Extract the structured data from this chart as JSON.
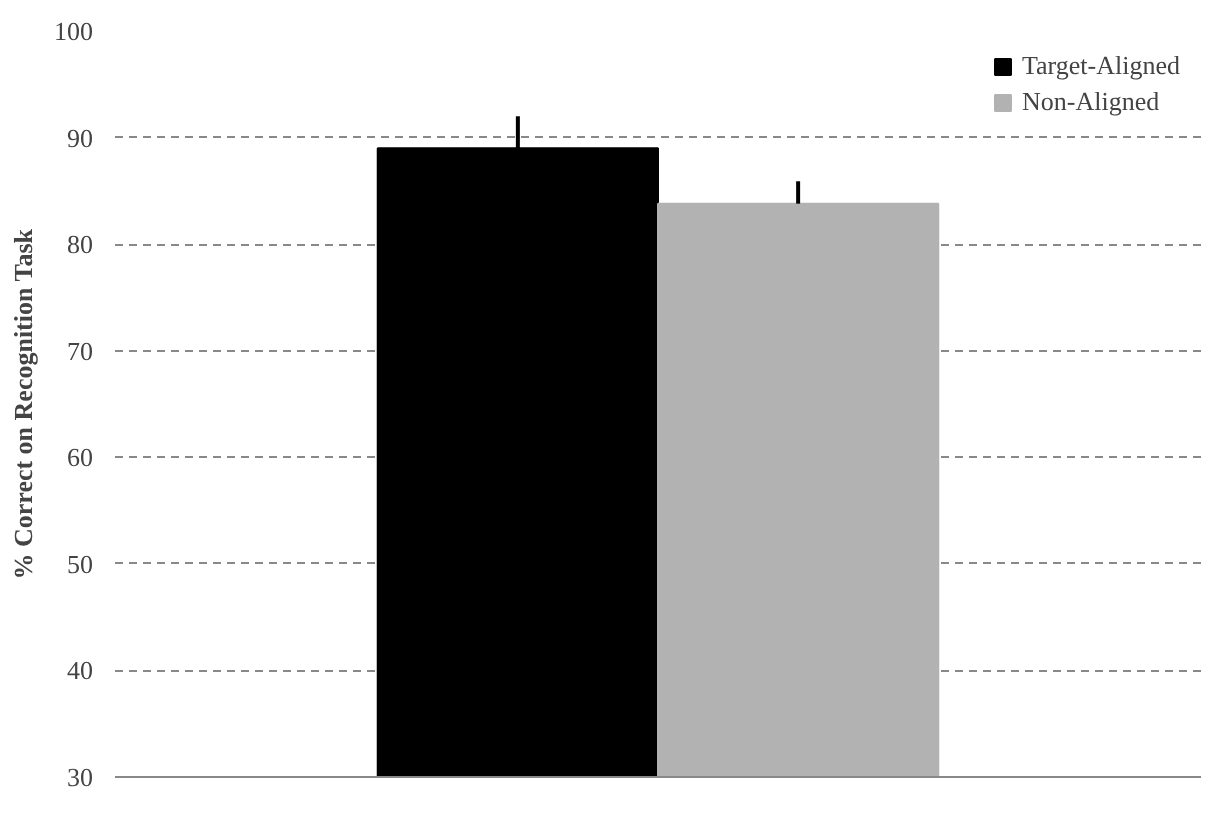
{
  "chart_data": {
    "type": "bar",
    "ylabel": "% Correct on Recognition Task",
    "categories": [
      null
    ],
    "series": [
      {
        "name": "Target-Aligned",
        "color": "#000000",
        "values": [
          89
        ],
        "errors": [
          [
            89,
            92
          ]
        ]
      },
      {
        "name": "Non-Aligned",
        "color": "#b2b2b2",
        "values": [
          83.8
        ],
        "errors": [
          [
            83.8,
            85.9
          ]
        ]
      }
    ],
    "ylim": [
      30,
      100
    ],
    "yticks": [
      30,
      40,
      50,
      60,
      70,
      80,
      90,
      100
    ],
    "grid": "y",
    "legend": "top right"
  }
}
